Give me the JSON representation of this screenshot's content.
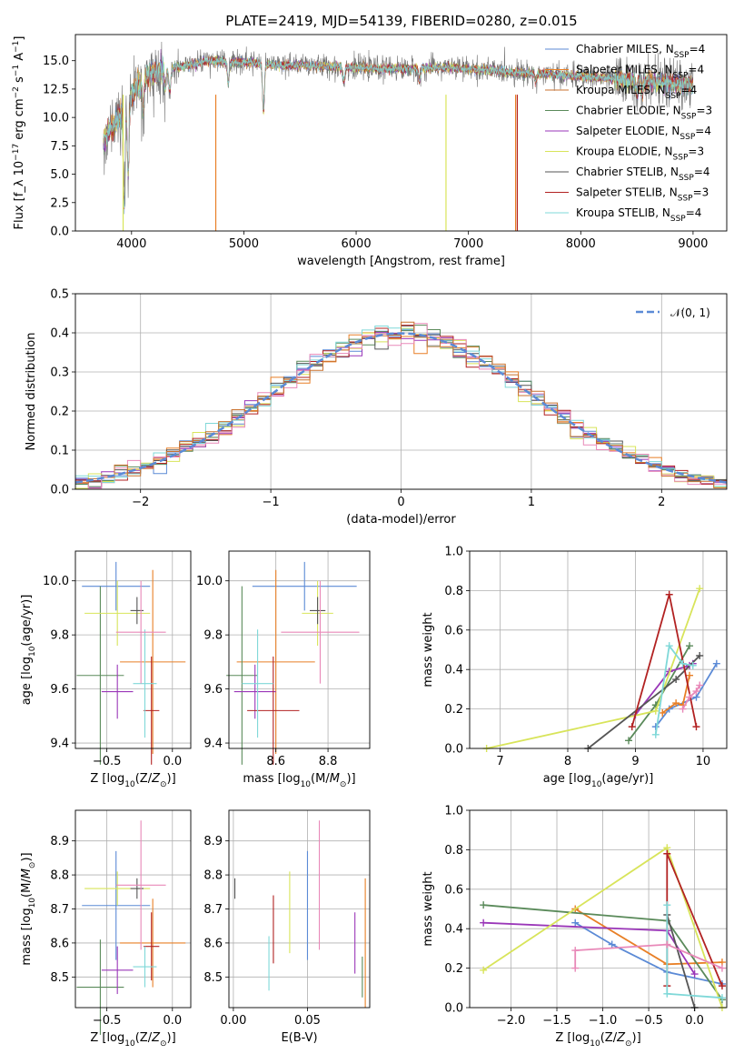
{
  "title": "PLATE=2419, MJD=54139, FIBERID=0280, z=0.015",
  "colors": [
    "#5b8ad6",
    "#e87f26",
    "#c9722f",
    "#5a8a5a",
    "#9a36b8",
    "#d8e45a",
    "#555555",
    "#b22222",
    "#7fd8d8",
    "#e888b8"
  ],
  "chart_data": [
    {
      "id": "spectrum",
      "type": "line",
      "xlabel": "wavelength [Angstrom, rest frame]",
      "ylabel": "Flux [f_λ 10^-17 erg cm^-2 s^-1 A^-1]",
      "xlim": [
        3500,
        9300
      ],
      "ylim": [
        0,
        17.3
      ],
      "xticks": [
        4000,
        5000,
        6000,
        7000,
        8000,
        9000
      ],
      "yticks": [
        0.0,
        2.5,
        5.0,
        7.5,
        10.0,
        12.5,
        15.0
      ],
      "legend_position": "upper-right",
      "x_range": [
        3750,
        9000
      ],
      "spectrum_shape": [
        [
          3750,
          8.0
        ],
        [
          3850,
          9.5
        ],
        [
          3950,
          11.0
        ],
        [
          4050,
          12.8
        ],
        [
          4150,
          13.8
        ],
        [
          4300,
          14.2
        ],
        [
          4500,
          14.6
        ],
        [
          4700,
          15.0
        ],
        [
          4900,
          14.9
        ],
        [
          5100,
          14.8
        ],
        [
          5300,
          14.6
        ],
        [
          5600,
          14.6
        ],
        [
          5900,
          14.4
        ],
        [
          6200,
          14.3
        ],
        [
          6500,
          14.3
        ],
        [
          6800,
          14.4
        ],
        [
          7100,
          14.2
        ],
        [
          7400,
          14.0
        ],
        [
          7700,
          13.8
        ],
        [
          8000,
          13.6
        ],
        [
          8300,
          13.4
        ],
        [
          8600,
          13.2
        ],
        [
          9000,
          12.8
        ]
      ],
      "absorption_features": [
        [
          3935,
          2.5
        ],
        [
          3970,
          5.0
        ],
        [
          4102,
          10.5
        ],
        [
          4300,
          12.5
        ],
        [
          4340,
          12.2
        ],
        [
          4861,
          13.0
        ],
        [
          5175,
          10.5
        ],
        [
          5890,
          13.2
        ],
        [
          6563,
          13.2
        ],
        [
          7600,
          13.3
        ],
        [
          8500,
          12.2
        ],
        [
          8545,
          12.0
        ]
      ],
      "series": [
        {
          "name": "Chabrier MILES, N_SSP=4"
        },
        {
          "name": "Salpeter MILES, N_SSP=4"
        },
        {
          "name": "Kroupa MILES, N_SSP=4"
        },
        {
          "name": "Chabrier ELODIE, N_SSP=3"
        },
        {
          "name": "Salpeter ELODIE, N_SSP=4"
        },
        {
          "name": "Kroupa ELODIE, N_SSP=3"
        },
        {
          "name": "Chabrier STELIB, N_SSP=4"
        },
        {
          "name": "Salpeter STELIB, N_SSP=3"
        },
        {
          "name": "Kroupa STELIB, N_SSP=4"
        }
      ]
    },
    {
      "id": "residuals",
      "type": "step",
      "xlabel": "(data-model)/error",
      "ylabel": "Normed distribution",
      "xlim": [
        -2.5,
        2.5
      ],
      "ylim": [
        0,
        0.5
      ],
      "xticks": [
        -2,
        -1,
        0,
        1,
        2
      ],
      "yticks": [
        0.0,
        0.1,
        0.2,
        0.3,
        0.4,
        0.5
      ],
      "grid": true,
      "legend": "𝒩(0, 1)",
      "legend_position": "upper-right",
      "bin_width": 0.1,
      "gaussian": {
        "mean": 0,
        "sigma": 1
      }
    },
    {
      "id": "age_vs_Z",
      "type": "errorbar",
      "xlabel": "Z [log10(Z/Z⊙)]",
      "ylabel": "age  [log10(age/yr)]",
      "xlim": [
        -0.74,
        0.14
      ],
      "ylim": [
        9.38,
        10.11
      ],
      "xticks": [
        -0.5,
        0.0
      ],
      "yticks": [
        9.4,
        9.6,
        9.8,
        10.0
      ],
      "grid": true,
      "points": [
        {
          "x": -0.43,
          "y": 9.98,
          "xerr": 0.26,
          "yerr": 0.09,
          "c": 0
        },
        {
          "x": -0.15,
          "y": 9.7,
          "xerr": 0.25,
          "yerr": 0.34,
          "c": 1
        },
        {
          "x": -0.55,
          "y": 9.65,
          "xerr": 0.18,
          "yerr": 0.33,
          "c": 3
        },
        {
          "x": -0.42,
          "y": 9.59,
          "xerr": 0.12,
          "yerr": 0.1,
          "c": 4
        },
        {
          "x": -0.42,
          "y": 9.88,
          "xerr": 0.25,
          "yerr": 0.12,
          "c": 5
        },
        {
          "x": -0.27,
          "y": 9.89,
          "xerr": 0.05,
          "yerr": 0.05,
          "c": 6
        },
        {
          "x": -0.16,
          "y": 9.52,
          "xerr": 0.06,
          "yerr": 0.2,
          "c": 7
        },
        {
          "x": -0.21,
          "y": 9.62,
          "xerr": 0.09,
          "yerr": 0.2,
          "c": 8
        },
        {
          "x": -0.24,
          "y": 9.81,
          "xerr": 0.19,
          "yerr": 0.19,
          "c": 9
        }
      ]
    },
    {
      "id": "age_vs_mass",
      "type": "errorbar",
      "xlabel": "mass [log10(M/M⊙)]",
      "ylabel": "",
      "xlim": [
        8.42,
        8.96
      ],
      "ylim": [
        9.38,
        10.11
      ],
      "xticks": [
        8.6,
        8.8
      ],
      "yticks": [
        9.4,
        9.6,
        9.8,
        10.0
      ],
      "grid": true,
      "points": [
        {
          "x": 8.71,
          "y": 9.98,
          "xerr": 0.2,
          "yerr": 0.09,
          "c": 0
        },
        {
          "x": 8.6,
          "y": 9.7,
          "xerr": 0.15,
          "yerr": 0.34,
          "c": 1
        },
        {
          "x": 8.47,
          "y": 9.65,
          "xerr": 0.06,
          "yerr": 0.33,
          "c": 3
        },
        {
          "x": 8.52,
          "y": 9.59,
          "xerr": 0.08,
          "yerr": 0.1,
          "c": 4
        },
        {
          "x": 8.76,
          "y": 9.88,
          "xerr": 0.06,
          "yerr": 0.12,
          "c": 5
        },
        {
          "x": 8.76,
          "y": 9.89,
          "xerr": 0.03,
          "yerr": 0.05,
          "c": 6
        },
        {
          "x": 8.59,
          "y": 9.52,
          "xerr": 0.1,
          "yerr": 0.2,
          "c": 7
        },
        {
          "x": 8.53,
          "y": 9.62,
          "xerr": 0.06,
          "yerr": 0.2,
          "c": 8
        },
        {
          "x": 8.77,
          "y": 9.81,
          "xerr": 0.15,
          "yerr": 0.19,
          "c": 9
        }
      ]
    },
    {
      "id": "weight_vs_age",
      "type": "line",
      "xlabel": "age  [log10(age/yr)]",
      "ylabel": "mass weight",
      "xlim": [
        6.55,
        10.35
      ],
      "ylim": [
        0,
        1.0
      ],
      "xticks": [
        7,
        8,
        9,
        10
      ],
      "yticks": [
        0.0,
        0.2,
        0.4,
        0.6,
        0.8,
        1.0
      ],
      "grid": true,
      "series": [
        {
          "c": 0,
          "points": [
            [
              9.3,
              0.11
            ],
            [
              9.5,
              0.2
            ],
            [
              9.9,
              0.26
            ],
            [
              10.2,
              0.43
            ]
          ]
        },
        {
          "c": 1,
          "points": [
            [
              9.4,
              0.18
            ],
            [
              9.6,
              0.23
            ],
            [
              9.7,
              0.22
            ],
            [
              9.8,
              0.37
            ]
          ]
        },
        {
          "c": 3,
          "points": [
            [
              8.9,
              0.04
            ],
            [
              9.3,
              0.22
            ],
            [
              9.8,
              0.52
            ]
          ]
        },
        {
          "c": 4,
          "points": [
            [
              9.0,
              0.17
            ],
            [
              9.5,
              0.39
            ],
            [
              9.8,
              0.42
            ],
            [
              9.85,
              0.43
            ]
          ]
        },
        {
          "c": 5,
          "points": [
            [
              6.8,
              0.0
            ],
            [
              9.3,
              0.19
            ],
            [
              9.95,
              0.81
            ]
          ]
        },
        {
          "c": 6,
          "points": [
            [
              8.3,
              0.0
            ],
            [
              9.6,
              0.35
            ],
            [
              9.95,
              0.47
            ]
          ]
        },
        {
          "c": 7,
          "points": [
            [
              8.95,
              0.11
            ],
            [
              9.5,
              0.78
            ],
            [
              9.9,
              0.11
            ]
          ]
        },
        {
          "c": 8,
          "points": [
            [
              9.3,
              0.07
            ],
            [
              9.5,
              0.52
            ],
            [
              9.7,
              0.43
            ],
            [
              9.85,
              0.42
            ]
          ]
        },
        {
          "c": 9,
          "points": [
            [
              9.7,
              0.2
            ],
            [
              9.8,
              0.26
            ],
            [
              9.9,
              0.29
            ],
            [
              9.95,
              0.32
            ]
          ]
        }
      ]
    },
    {
      "id": "mass_vs_Z",
      "type": "errorbar",
      "xlabel": "Z [log10(Z/Z⊙)]",
      "ylabel": "mass [log10(M/M⊙)]",
      "xlim": [
        -0.74,
        0.14
      ],
      "ylim": [
        8.41,
        8.99
      ],
      "xticks": [
        -0.5,
        0.0
      ],
      "yticks": [
        8.5,
        8.6,
        8.7,
        8.8,
        8.9
      ],
      "grid": true,
      "points": [
        {
          "x": -0.43,
          "y": 8.71,
          "xerr": 0.26,
          "yerr": 0.16,
          "c": 0
        },
        {
          "x": -0.15,
          "y": 8.6,
          "xerr": 0.25,
          "yerr": 0.13,
          "c": 1
        },
        {
          "x": -0.55,
          "y": 8.47,
          "xerr": 0.18,
          "yerr": 0.14,
          "c": 3
        },
        {
          "x": -0.42,
          "y": 8.52,
          "xerr": 0.12,
          "yerr": 0.07,
          "c": 4
        },
        {
          "x": -0.42,
          "y": 8.76,
          "xerr": 0.25,
          "yerr": 0.05,
          "c": 5
        },
        {
          "x": -0.27,
          "y": 8.76,
          "xerr": 0.05,
          "yerr": 0.03,
          "c": 6
        },
        {
          "x": -0.16,
          "y": 8.59,
          "xerr": 0.06,
          "yerr": 0.1,
          "c": 7
        },
        {
          "x": -0.21,
          "y": 8.53,
          "xerr": 0.09,
          "yerr": 0.06,
          "c": 8
        },
        {
          "x": -0.24,
          "y": 8.77,
          "xerr": 0.19,
          "yerr": 0.19,
          "c": 9
        }
      ]
    },
    {
      "id": "mass_vs_ebv",
      "type": "errorbar",
      "xlabel": "E(B-V)",
      "ylabel": "",
      "xlim": [
        -0.003,
        0.092
      ],
      "ylim": [
        8.41,
        8.99
      ],
      "xticks": [
        0.0,
        0.05
      ],
      "yticks": [
        8.5,
        8.6,
        8.7,
        8.8,
        8.9
      ],
      "grid": true,
      "points": [
        {
          "x": 0.05,
          "y": 8.71,
          "xerr": 0,
          "yerr": 0.16,
          "c": 0
        },
        {
          "x": 0.089,
          "y": 8.6,
          "xerr": 0,
          "yerr": 0.19,
          "c": 1
        },
        {
          "x": 0.087,
          "y": 8.5,
          "xerr": 0,
          "yerr": 0.06,
          "c": 3
        },
        {
          "x": 0.082,
          "y": 8.6,
          "xerr": 0,
          "yerr": 0.09,
          "c": 4
        },
        {
          "x": 0.038,
          "y": 8.69,
          "xerr": 0,
          "yerr": 0.12,
          "c": 5
        },
        {
          "x": 0.001,
          "y": 8.76,
          "xerr": 0,
          "yerr": 0.03,
          "c": 6
        },
        {
          "x": 0.027,
          "y": 8.64,
          "xerr": 0,
          "yerr": 0.1,
          "c": 7
        },
        {
          "x": 0.024,
          "y": 8.54,
          "xerr": 0,
          "yerr": 0.08,
          "c": 8
        },
        {
          "x": 0.058,
          "y": 8.77,
          "xerr": 0,
          "yerr": 0.19,
          "c": 9
        }
      ]
    },
    {
      "id": "weight_vs_Z",
      "type": "line",
      "xlabel": "Z [log10(Z/Z⊙)]",
      "ylabel": "mass weight",
      "xlim": [
        -2.45,
        0.35
      ],
      "ylim": [
        0,
        1.0
      ],
      "xticks": [
        -2.0,
        -1.5,
        -1.0,
        -0.5,
        0.0
      ],
      "yticks": [
        0.0,
        0.2,
        0.4,
        0.6,
        0.8,
        1.0
      ],
      "grid": true,
      "series": [
        {
          "c": 0,
          "points": [
            [
              -1.3,
              0.43
            ],
            [
              -0.9,
              0.32
            ],
            [
              -0.3,
              0.18
            ],
            [
              0.3,
              0.12
            ]
          ]
        },
        {
          "c": 1,
          "points": [
            [
              -1.3,
              0.5
            ],
            [
              -0.3,
              0.22
            ],
            [
              0.3,
              0.23
            ]
          ]
        },
        {
          "c": 3,
          "points": [
            [
              -2.3,
              0.52
            ],
            [
              -0.3,
              0.44
            ],
            [
              0.3,
              0.04
            ]
          ]
        },
        {
          "c": 4,
          "points": [
            [
              -2.3,
              0.43
            ],
            [
              -0.3,
              0.39
            ],
            [
              0.0,
              0.17
            ]
          ]
        },
        {
          "c": 5,
          "points": [
            [
              -2.3,
              0.19
            ],
            [
              -0.3,
              0.81
            ],
            [
              0.3,
              0.0
            ]
          ]
        },
        {
          "c": 6,
          "points": [
            [
              -0.3,
              0.47
            ],
            [
              0.0,
              0.0
            ]
          ]
        },
        {
          "c": 7,
          "points": [
            [
              -0.3,
              0.11
            ],
            [
              -0.3,
              0.78
            ],
            [
              0.3,
              0.11
            ]
          ]
        },
        {
          "c": 8,
          "points": [
            [
              -0.3,
              0.52
            ],
            [
              -0.3,
              0.07
            ],
            [
              0.3,
              0.05
            ]
          ]
        },
        {
          "c": 9,
          "points": [
            [
              -1.3,
              0.2
            ],
            [
              -1.3,
              0.29
            ],
            [
              -0.3,
              0.32
            ],
            [
              0.3,
              0.2
            ]
          ]
        }
      ]
    }
  ]
}
